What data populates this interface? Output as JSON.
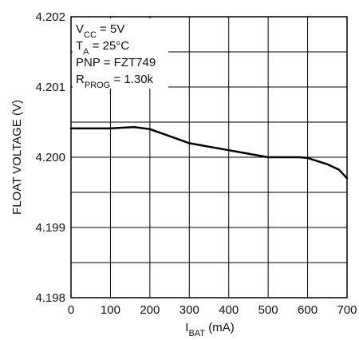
{
  "chart_data": {
    "type": "line",
    "title": "",
    "xlabel": {
      "base": "I",
      "sub": "BAT",
      "suffix": " (mA)"
    },
    "ylabel": "FLOAT VOLTAGE (V)",
    "xlim": [
      0,
      700
    ],
    "ylim": [
      4.198,
      4.202
    ],
    "x_ticks": [
      0,
      100,
      200,
      300,
      400,
      500,
      600,
      700
    ],
    "x_tick_labels": [
      "0",
      "100",
      "200",
      "300",
      "400",
      "500",
      "600",
      "700"
    ],
    "y_ticks": [
      4.198,
      4.199,
      4.2,
      4.201,
      4.202
    ],
    "y_tick_labels": [
      "4.198",
      "4.199",
      "4.200",
      "4.201",
      "4.202"
    ],
    "grid": true,
    "grid_step_x": 100,
    "grid_step_y": 0.0005,
    "annotations": [
      {
        "id": "vcc",
        "base": "V",
        "sub": "CC",
        "rest": " = 5V"
      },
      {
        "id": "ta",
        "base": "T",
        "sub": "A",
        "rest": " = 25°C"
      },
      {
        "id": "pnp",
        "base": "PNP = FZT749",
        "sub": "",
        "rest": ""
      },
      {
        "id": "rprog",
        "base": "R",
        "sub": "PROG",
        "rest": " = 1.30k"
      }
    ],
    "series": [
      {
        "color": "#000000",
        "points": [
          {
            "x": 0,
            "y": 4.20041
          },
          {
            "x": 50,
            "y": 4.20041
          },
          {
            "x": 100,
            "y": 4.20041
          },
          {
            "x": 130,
            "y": 4.20042
          },
          {
            "x": 160,
            "y": 4.20043
          },
          {
            "x": 200,
            "y": 4.2004
          },
          {
            "x": 250,
            "y": 4.2003
          },
          {
            "x": 300,
            "y": 4.2002
          },
          {
            "x": 350,
            "y": 4.20015
          },
          {
            "x": 400,
            "y": 4.2001
          },
          {
            "x": 450,
            "y": 4.20005
          },
          {
            "x": 500,
            "y": 4.2
          },
          {
            "x": 550,
            "y": 4.2
          },
          {
            "x": 580,
            "y": 4.2
          },
          {
            "x": 600,
            "y": 4.19999
          },
          {
            "x": 650,
            "y": 4.1999
          },
          {
            "x": 680,
            "y": 4.19982
          },
          {
            "x": 700,
            "y": 4.1997
          }
        ]
      }
    ]
  }
}
